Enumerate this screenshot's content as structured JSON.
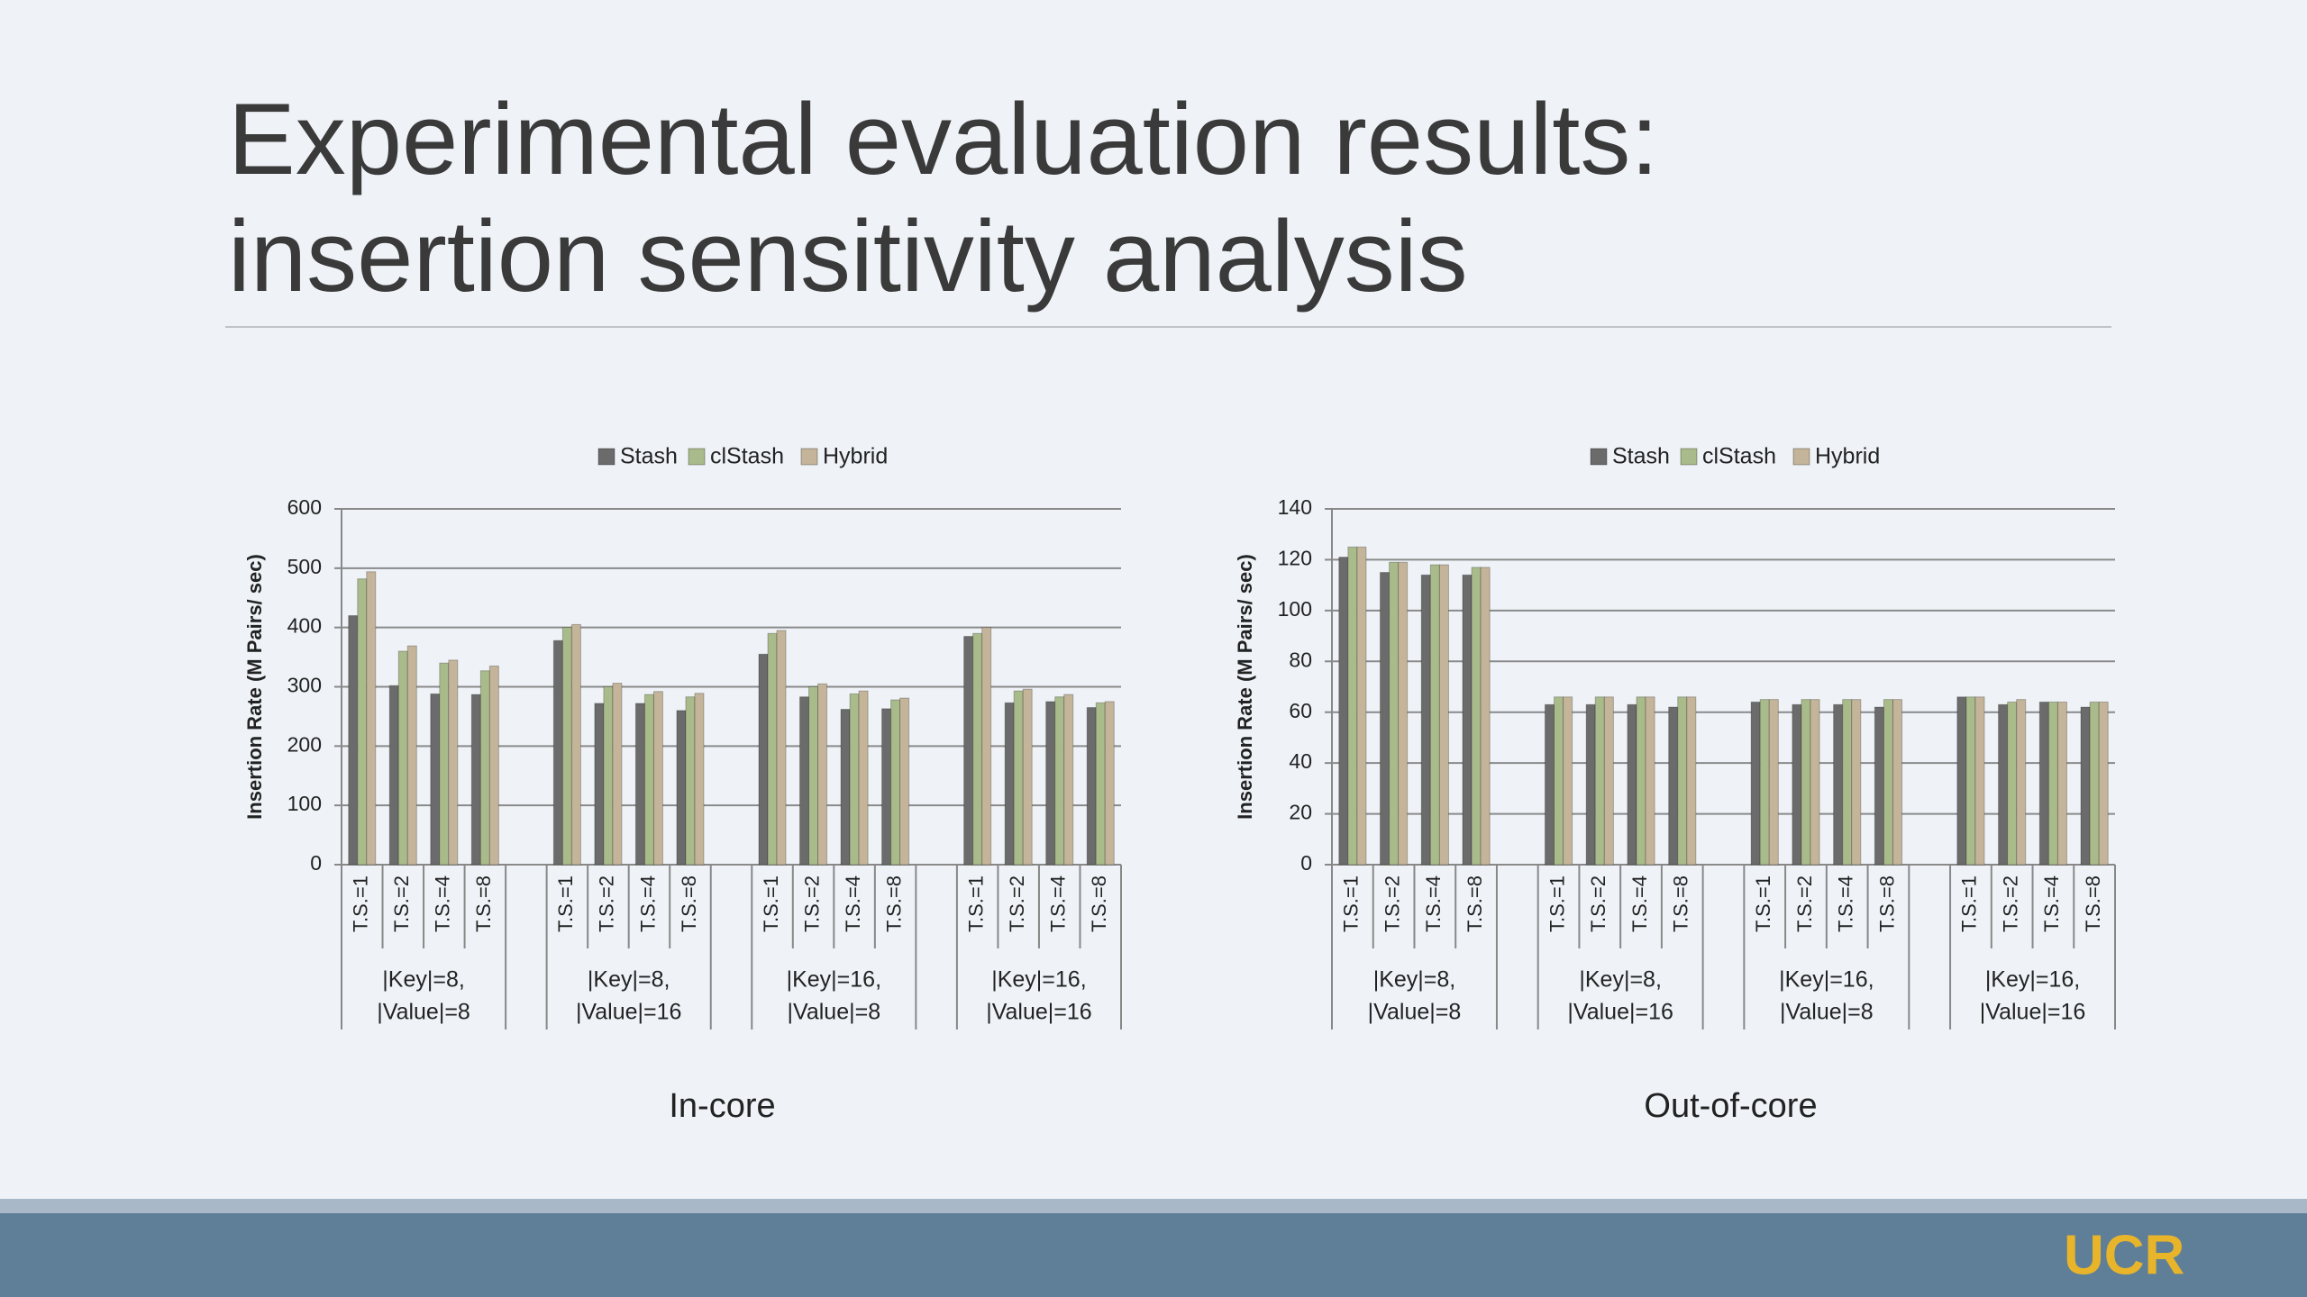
{
  "header": {
    "title": [
      "Experimental evaluation results:",
      "insertion sensitivity analysis"
    ],
    "logo": "UCR"
  },
  "chart_data": [
    {
      "type": "bar",
      "caption": "In-core",
      "ylabel": "Insertion Rate (M Pairs/ sec)",
      "groups": [
        [
          "|Key|=8,",
          "|Value|=8"
        ],
        [
          "|Key|=8,",
          "|Value|=16"
        ],
        [
          "|Key|=16,",
          "|Value|=8"
        ],
        [
          "|Key|=16,",
          "|Value|=16"
        ]
      ],
      "categories": [
        "T.S.=1",
        "T.S.=2",
        "T.S.=4",
        "T.S.=8",
        "T.S.=1",
        "T.S.=2",
        "T.S.=4",
        "T.S.=8",
        "T.S.=1",
        "T.S.=2",
        "T.S.=4",
        "T.S.=8",
        "T.S.=1",
        "T.S.=2",
        "T.S.=4",
        "T.S.=8"
      ],
      "series": [
        {
          "name": "Stash",
          "color": "#6b6b6b",
          "values": [
            420,
            302,
            288,
            287,
            378,
            272,
            272,
            260,
            355,
            283,
            262,
            263,
            385,
            273,
            275,
            265
          ]
        },
        {
          "name": "clStash",
          "color": "#a9bb8a",
          "values": [
            482,
            360,
            340,
            327,
            400,
            300,
            287,
            283,
            390,
            300,
            288,
            278,
            390,
            293,
            283,
            273
          ]
        },
        {
          "name": "Hybrid",
          "color": "#c4b49a",
          "values": [
            494,
            369,
            345,
            335,
            405,
            306,
            292,
            289,
            395,
            305,
            293,
            281,
            400,
            296,
            287,
            275
          ]
        }
      ],
      "ylim": [
        0,
        600
      ],
      "yticks": [
        0,
        100,
        200,
        300,
        400,
        500,
        600
      ],
      "grid": true,
      "legend": "top"
    },
    {
      "type": "bar",
      "caption": "Out-of-core",
      "ylabel": "Insertion Rate (M Pairs/ sec)",
      "groups": [
        [
          "|Key|=8,",
          "|Value|=8"
        ],
        [
          "|Key|=8,",
          "|Value|=16"
        ],
        [
          "|Key|=16,",
          "|Value|=8"
        ],
        [
          "|Key|=16,",
          "|Value|=16"
        ]
      ],
      "categories": [
        "T.S.=1",
        "T.S.=2",
        "T.S.=4",
        "T.S.=8",
        "T.S.=1",
        "T.S.=2",
        "T.S.=4",
        "T.S.=8",
        "T.S.=1",
        "T.S.=2",
        "T.S.=4",
        "T.S.=8",
        "T.S.=1",
        "T.S.=2",
        "T.S.=4",
        "T.S.=8"
      ],
      "series": [
        {
          "name": "Stash",
          "color": "#6b6b6b",
          "values": [
            121,
            115,
            114,
            114,
            63,
            63,
            63,
            62,
            64,
            63,
            63,
            62,
            66,
            63,
            64,
            62
          ]
        },
        {
          "name": "clStash",
          "color": "#a9bb8a",
          "values": [
            125,
            119,
            118,
            117,
            66,
            66,
            66,
            66,
            65,
            65,
            65,
            65,
            66,
            64,
            64,
            64
          ]
        },
        {
          "name": "Hybrid",
          "color": "#c4b49a",
          "values": [
            125,
            119,
            118,
            117,
            66,
            66,
            66,
            66,
            65,
            65,
            65,
            65,
            66,
            65,
            64,
            64
          ]
        }
      ],
      "ylim": [
        0,
        140
      ],
      "yticks": [
        0,
        20,
        40,
        60,
        80,
        100,
        120,
        140
      ],
      "grid": true,
      "legend": "top"
    }
  ]
}
